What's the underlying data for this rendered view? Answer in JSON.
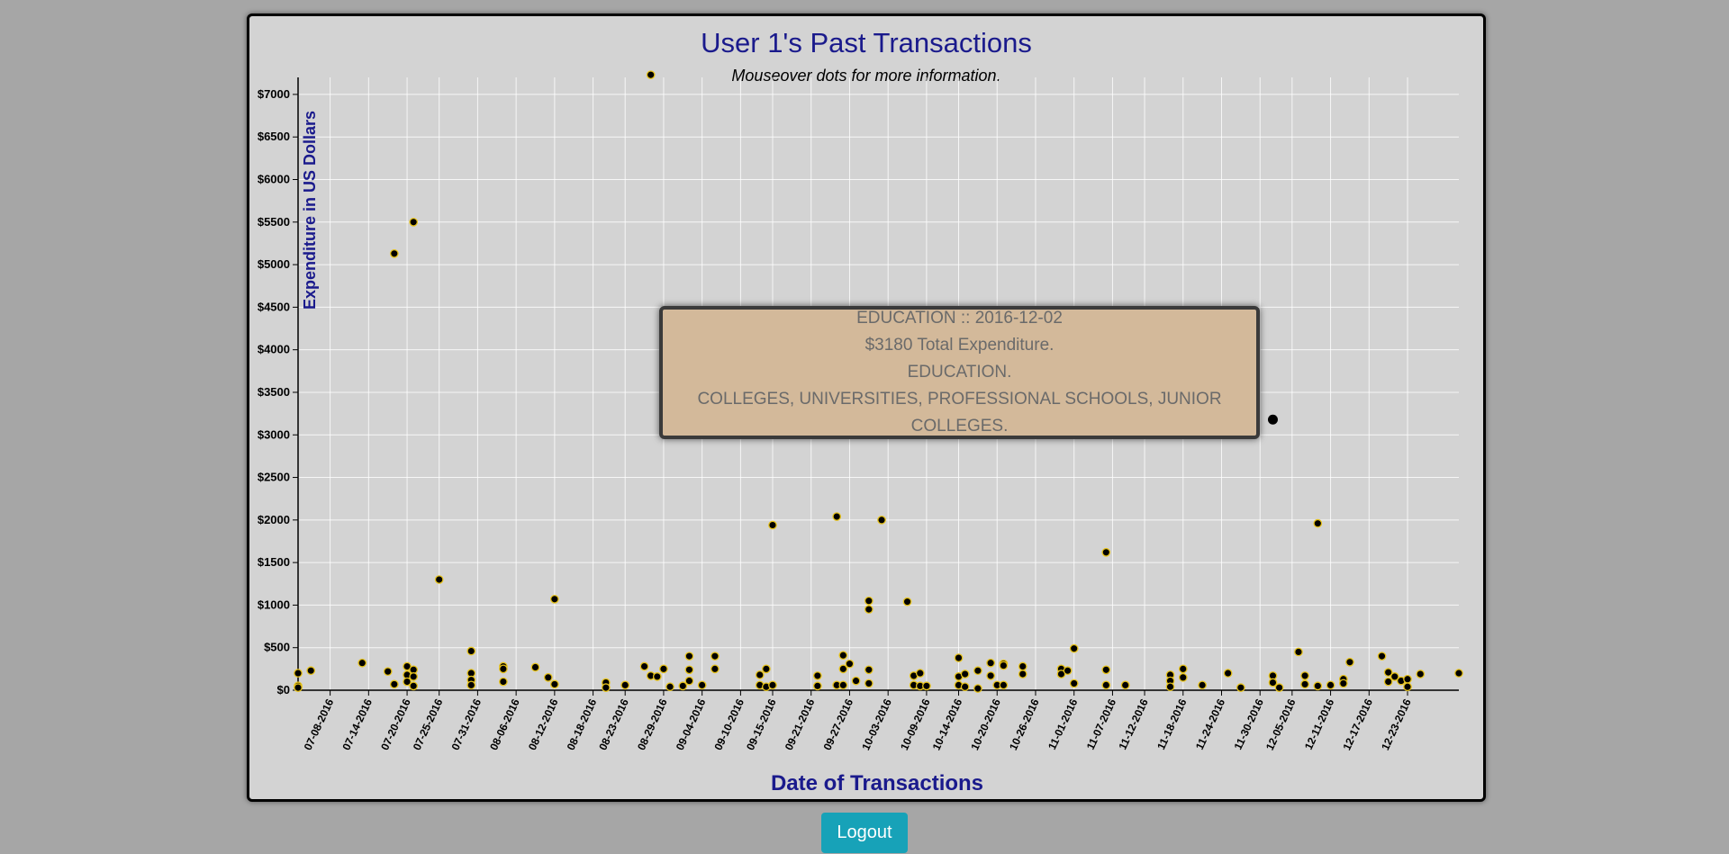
{
  "page": {
    "title": "User 1's Past Transactions",
    "subtitle": "Mouseover dots for more information."
  },
  "tooltip": {
    "line1": "EDUCATION :: 2016-12-02",
    "line2": "$3180 Total Expenditure.",
    "line3": "EDUCATION.",
    "line4": "COLLEGES, UNIVERSITIES, PROFESSIONAL SCHOOLS, JUNIOR COLLEGES."
  },
  "logout_label": "Logout",
  "colors": {
    "title": "#1a1a8c",
    "dot_fill": "#000000",
    "dot_stroke": "#e6c21a",
    "background": "#a6a6a6",
    "panel": "#d3d3d3",
    "button": "#17a2b8"
  },
  "chart_data": {
    "type": "scatter",
    "title": "User 1's Past Transactions",
    "subtitle": "Mouseover dots for more information.",
    "xlabel": "Date of Transactions",
    "ylabel": "Expenditure in US Dollars",
    "xlim": [
      "2016-07-03",
      "2016-12-31"
    ],
    "ylim": [
      0,
      7200
    ],
    "y_ticks": [
      "$0",
      "$500",
      "$1000",
      "$1500",
      "$2000",
      "$2500",
      "$3000",
      "$3500",
      "$4000",
      "$4500",
      "$5000",
      "$5500",
      "$6000",
      "$6500",
      "$7000"
    ],
    "x_ticks": [
      "07-08-2016",
      "07-14-2016",
      "07-20-2016",
      "07-25-2016",
      "07-31-2016",
      "08-06-2016",
      "08-12-2016",
      "08-18-2016",
      "08-23-2016",
      "08-29-2016",
      "09-04-2016",
      "09-10-2016",
      "09-15-2016",
      "09-21-2016",
      "09-27-2016",
      "10-03-2016",
      "10-09-2016",
      "10-14-2016",
      "10-20-2016",
      "10-26-2016",
      "11-01-2016",
      "11-07-2016",
      "11-12-2016",
      "11-18-2016",
      "11-24-2016",
      "11-30-2016",
      "12-05-2016",
      "12-11-2016",
      "12-17-2016",
      "12-23-2016"
    ],
    "grid": true,
    "highlight": {
      "x": "2016-12-02",
      "y": 3180
    },
    "points": [
      {
        "x": "2016-07-03",
        "y": 200
      },
      {
        "x": "2016-07-03",
        "y": 50
      },
      {
        "x": "2016-07-03",
        "y": 30
      },
      {
        "x": "2016-07-05",
        "y": 230
      },
      {
        "x": "2016-07-13",
        "y": 320
      },
      {
        "x": "2016-07-17",
        "y": 220
      },
      {
        "x": "2016-07-18",
        "y": 5130
      },
      {
        "x": "2016-07-18",
        "y": 70
      },
      {
        "x": "2016-07-20",
        "y": 280
      },
      {
        "x": "2016-07-20",
        "y": 180
      },
      {
        "x": "2016-07-20",
        "y": 100
      },
      {
        "x": "2016-07-21",
        "y": 5500
      },
      {
        "x": "2016-07-21",
        "y": 240
      },
      {
        "x": "2016-07-21",
        "y": 160
      },
      {
        "x": "2016-07-21",
        "y": 50
      },
      {
        "x": "2016-07-25",
        "y": 1300
      },
      {
        "x": "2016-07-30",
        "y": 460
      },
      {
        "x": "2016-07-30",
        "y": 200
      },
      {
        "x": "2016-07-30",
        "y": 120
      },
      {
        "x": "2016-07-30",
        "y": 60
      },
      {
        "x": "2016-08-04",
        "y": 280
      },
      {
        "x": "2016-08-04",
        "y": 250
      },
      {
        "x": "2016-08-04",
        "y": 100
      },
      {
        "x": "2016-08-09",
        "y": 270
      },
      {
        "x": "2016-08-11",
        "y": 150
      },
      {
        "x": "2016-08-12",
        "y": 1070
      },
      {
        "x": "2016-08-12",
        "y": 70
      },
      {
        "x": "2016-08-20",
        "y": 90
      },
      {
        "x": "2016-08-20",
        "y": 30
      },
      {
        "x": "2016-08-23",
        "y": 60
      },
      {
        "x": "2016-08-26",
        "y": 280
      },
      {
        "x": "2016-08-27",
        "y": 7230
      },
      {
        "x": "2016-08-27",
        "y": 170
      },
      {
        "x": "2016-08-28",
        "y": 160
      },
      {
        "x": "2016-08-29",
        "y": 250
      },
      {
        "x": "2016-08-30",
        "y": 40
      },
      {
        "x": "2016-09-01",
        "y": 50
      },
      {
        "x": "2016-09-02",
        "y": 400
      },
      {
        "x": "2016-09-02",
        "y": 240
      },
      {
        "x": "2016-09-02",
        "y": 110
      },
      {
        "x": "2016-09-04",
        "y": 60
      },
      {
        "x": "2016-09-06",
        "y": 400
      },
      {
        "x": "2016-09-06",
        "y": 250
      },
      {
        "x": "2016-09-13",
        "y": 180
      },
      {
        "x": "2016-09-13",
        "y": 60
      },
      {
        "x": "2016-09-14",
        "y": 250
      },
      {
        "x": "2016-09-14",
        "y": 40
      },
      {
        "x": "2016-09-15",
        "y": 60
      },
      {
        "x": "2016-09-15",
        "y": 1940
      },
      {
        "x": "2016-09-22",
        "y": 170
      },
      {
        "x": "2016-09-22",
        "y": 50
      },
      {
        "x": "2016-09-25",
        "y": 2040
      },
      {
        "x": "2016-09-25",
        "y": 60
      },
      {
        "x": "2016-09-26",
        "y": 410
      },
      {
        "x": "2016-09-26",
        "y": 250
      },
      {
        "x": "2016-09-26",
        "y": 60
      },
      {
        "x": "2016-09-27",
        "y": 310
      },
      {
        "x": "2016-09-28",
        "y": 110
      },
      {
        "x": "2016-09-30",
        "y": 1050
      },
      {
        "x": "2016-09-30",
        "y": 950
      },
      {
        "x": "2016-09-30",
        "y": 240
      },
      {
        "x": "2016-09-30",
        "y": 80
      },
      {
        "x": "2016-10-02",
        "y": 2000
      },
      {
        "x": "2016-10-06",
        "y": 1040
      },
      {
        "x": "2016-10-07",
        "y": 170
      },
      {
        "x": "2016-10-07",
        "y": 60
      },
      {
        "x": "2016-10-08",
        "y": 200
      },
      {
        "x": "2016-10-08",
        "y": 50
      },
      {
        "x": "2016-10-09",
        "y": 50
      },
      {
        "x": "2016-10-14",
        "y": 380
      },
      {
        "x": "2016-10-14",
        "y": 160
      },
      {
        "x": "2016-10-14",
        "y": 60
      },
      {
        "x": "2016-10-15",
        "y": 190
      },
      {
        "x": "2016-10-15",
        "y": 40
      },
      {
        "x": "2016-10-17",
        "y": 230
      },
      {
        "x": "2016-10-17",
        "y": 20
      },
      {
        "x": "2016-10-19",
        "y": 320
      },
      {
        "x": "2016-10-19",
        "y": 170
      },
      {
        "x": "2016-10-20",
        "y": 60
      },
      {
        "x": "2016-10-21",
        "y": 310
      },
      {
        "x": "2016-10-21",
        "y": 290
      },
      {
        "x": "2016-10-21",
        "y": 60
      },
      {
        "x": "2016-10-24",
        "y": 280
      },
      {
        "x": "2016-10-24",
        "y": 190
      },
      {
        "x": "2016-10-30",
        "y": 250
      },
      {
        "x": "2016-10-30",
        "y": 190
      },
      {
        "x": "2016-10-31",
        "y": 230
      },
      {
        "x": "2016-11-01",
        "y": 490
      },
      {
        "x": "2016-11-01",
        "y": 80
      },
      {
        "x": "2016-11-06",
        "y": 1620
      },
      {
        "x": "2016-11-06",
        "y": 240
      },
      {
        "x": "2016-11-06",
        "y": 60
      },
      {
        "x": "2016-11-09",
        "y": 60
      },
      {
        "x": "2016-11-16",
        "y": 180
      },
      {
        "x": "2016-11-16",
        "y": 110
      },
      {
        "x": "2016-11-16",
        "y": 40
      },
      {
        "x": "2016-11-18",
        "y": 250
      },
      {
        "x": "2016-11-18",
        "y": 150
      },
      {
        "x": "2016-11-21",
        "y": 60
      },
      {
        "x": "2016-11-25",
        "y": 200
      },
      {
        "x": "2016-11-27",
        "y": 30
      },
      {
        "x": "2016-12-02",
        "y": 3180
      },
      {
        "x": "2016-12-02",
        "y": 170
      },
      {
        "x": "2016-12-02",
        "y": 90
      },
      {
        "x": "2016-12-03",
        "y": 30
      },
      {
        "x": "2016-12-06",
        "y": 450
      },
      {
        "x": "2016-12-07",
        "y": 170
      },
      {
        "x": "2016-12-07",
        "y": 70
      },
      {
        "x": "2016-12-09",
        "y": 1960
      },
      {
        "x": "2016-12-09",
        "y": 50
      },
      {
        "x": "2016-12-11",
        "y": 60
      },
      {
        "x": "2016-12-13",
        "y": 130
      },
      {
        "x": "2016-12-13",
        "y": 80
      },
      {
        "x": "2016-12-14",
        "y": 330
      },
      {
        "x": "2016-12-19",
        "y": 400
      },
      {
        "x": "2016-12-20",
        "y": 210
      },
      {
        "x": "2016-12-20",
        "y": 100
      },
      {
        "x": "2016-12-21",
        "y": 160
      },
      {
        "x": "2016-12-22",
        "y": 110
      },
      {
        "x": "2016-12-23",
        "y": 130
      },
      {
        "x": "2016-12-23",
        "y": 40
      },
      {
        "x": "2016-12-25",
        "y": 190
      },
      {
        "x": "2016-12-31",
        "y": 200
      }
    ]
  }
}
